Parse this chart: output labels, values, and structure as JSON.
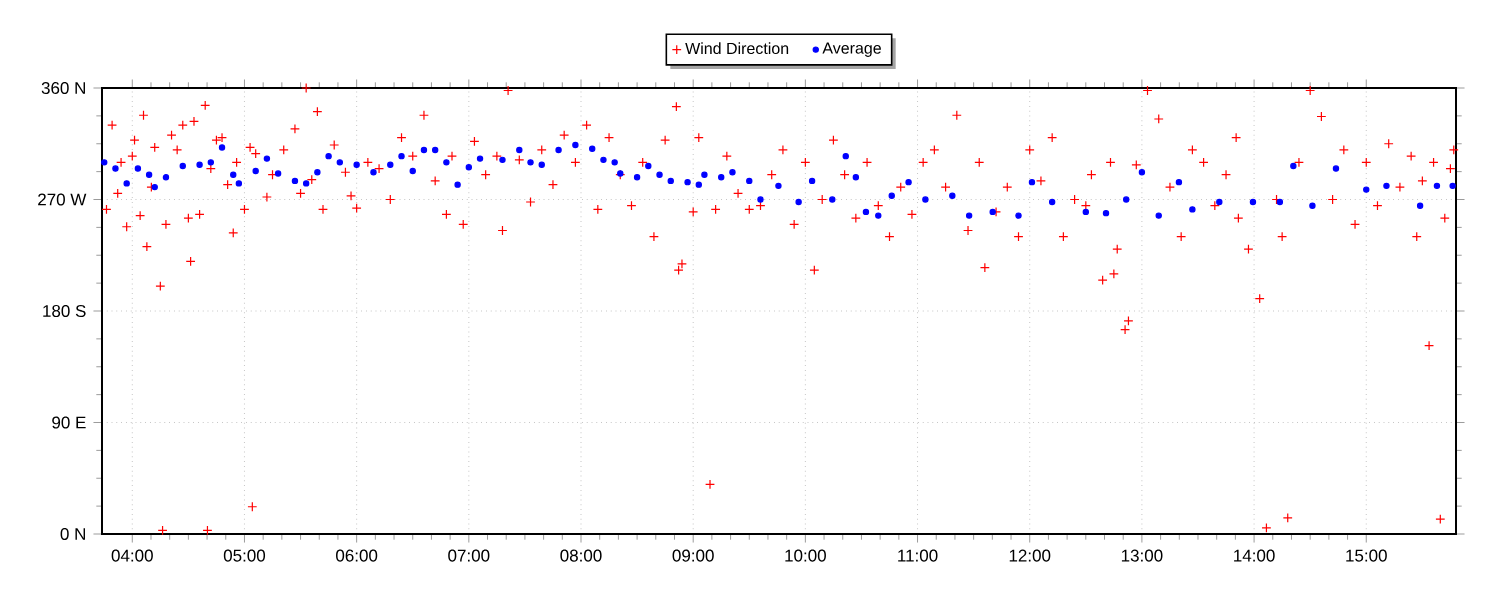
{
  "chart_data": {
    "type": "scatter",
    "xlim": [
      3.73,
      15.8
    ],
    "xticks": [
      {
        "value": 4,
        "label": "04:00"
      },
      {
        "value": 5,
        "label": "05:00"
      },
      {
        "value": 6,
        "label": "06:00"
      },
      {
        "value": 7,
        "label": "07:00"
      },
      {
        "value": 8,
        "label": "08:00"
      },
      {
        "value": 9,
        "label": "09:00"
      },
      {
        "value": 10,
        "label": "10:00"
      },
      {
        "value": 11,
        "label": "11:00"
      },
      {
        "value": 12,
        "label": "12:00"
      },
      {
        "value": 13,
        "label": "13:00"
      },
      {
        "value": 14,
        "label": "14:00"
      },
      {
        "value": 15,
        "label": "15:00"
      }
    ],
    "ylim": [
      0,
      360
    ],
    "yticks": [
      {
        "value": 0,
        "label": "0 N"
      },
      {
        "value": 90,
        "label": "90 E"
      },
      {
        "value": 180,
        "label": "180 S"
      },
      {
        "value": 270,
        "label": "270 W"
      },
      {
        "value": 360,
        "label": "360 N"
      }
    ],
    "grid": true,
    "legend": "top",
    "series": [
      {
        "name": "Wind Direction",
        "color": "#ff0000",
        "marker": "cross",
        "x": [
          3.77,
          3.82,
          3.87,
          3.9,
          3.95,
          4.0,
          4.02,
          4.07,
          4.1,
          4.13,
          4.17,
          4.2,
          4.25,
          4.27,
          4.3,
          4.35,
          4.4,
          4.45,
          4.5,
          4.52,
          4.55,
          4.6,
          4.65,
          4.67,
          4.7,
          4.75,
          4.8,
          4.85,
          4.9,
          4.93,
          5.0,
          5.05,
          5.07,
          5.1,
          5.2,
          5.25,
          5.35,
          5.45,
          5.5,
          5.55,
          5.6,
          5.65,
          5.7,
          5.8,
          5.9,
          5.95,
          6.0,
          6.1,
          6.2,
          6.3,
          6.4,
          6.5,
          6.6,
          6.7,
          6.8,
          6.85,
          6.95,
          7.05,
          7.15,
          7.25,
          7.3,
          7.35,
          7.45,
          7.55,
          7.65,
          7.75,
          7.85,
          7.95,
          8.05,
          8.15,
          8.25,
          8.35,
          8.45,
          8.55,
          8.65,
          8.75,
          8.85,
          8.87,
          8.9,
          9.0,
          9.05,
          9.15,
          9.2,
          9.3,
          9.4,
          9.5,
          9.6,
          9.7,
          9.8,
          9.9,
          10.0,
          10.08,
          10.15,
          10.25,
          10.35,
          10.45,
          10.55,
          10.65,
          10.75,
          10.85,
          10.95,
          11.05,
          11.15,
          11.25,
          11.35,
          11.45,
          11.55,
          11.6,
          11.7,
          11.8,
          11.9,
          12.0,
          12.1,
          12.2,
          12.3,
          12.4,
          12.5,
          12.55,
          12.65,
          12.72,
          12.75,
          12.78,
          12.85,
          12.88,
          12.95,
          13.05,
          13.15,
          13.25,
          13.35,
          13.45,
          13.55,
          13.65,
          13.75,
          13.84,
          13.86,
          13.95,
          14.05,
          14.11,
          14.2,
          14.25,
          14.3,
          14.4,
          14.5,
          14.6,
          14.7,
          14.8,
          14.9,
          15.0,
          15.1,
          15.2,
          15.3,
          15.4,
          15.45,
          15.5,
          15.56,
          15.6,
          15.66,
          15.7,
          15.75,
          15.78
        ],
        "values": [
          262,
          330,
          275,
          300,
          248,
          305,
          318,
          257,
          338,
          232,
          280,
          312,
          200,
          3,
          250,
          322,
          310,
          330,
          255,
          220,
          333,
          258,
          346,
          3,
          295,
          318,
          320,
          282,
          243,
          300,
          262,
          312,
          22,
          307,
          272,
          290,
          310,
          327,
          275,
          360,
          286,
          341,
          262,
          314,
          292,
          273,
          263,
          300,
          295,
          270,
          320,
          305,
          338,
          285,
          258,
          305,
          250,
          317,
          290,
          305,
          245,
          358,
          302,
          268,
          310,
          282,
          322,
          300,
          330,
          262,
          320,
          290,
          265,
          300,
          240,
          318,
          345,
          213,
          218,
          260,
          320,
          40,
          262,
          305,
          275,
          262,
          265,
          290,
          310,
          250,
          300,
          213,
          270,
          318,
          290,
          255,
          300,
          265,
          240,
          280,
          258,
          300,
          310,
          280,
          338,
          245,
          300,
          215,
          260,
          280,
          240,
          310,
          285,
          320,
          240,
          270,
          265,
          290,
          205,
          300,
          210,
          230,
          165,
          172,
          298,
          358,
          335,
          280,
          240,
          310,
          300,
          265,
          290,
          320,
          255,
          230,
          190,
          5,
          270,
          240,
          13,
          300,
          358,
          337,
          270,
          310,
          250,
          300,
          265,
          315,
          280,
          305,
          240,
          285,
          152,
          300,
          12,
          255,
          295,
          310
        ]
      },
      {
        "name": "Average",
        "color": "#0000ff",
        "marker": "circle",
        "x": [
          3.75,
          3.85,
          3.95,
          4.05,
          4.15,
          4.2,
          4.3,
          4.45,
          4.6,
          4.7,
          4.8,
          4.9,
          4.95,
          5.1,
          5.2,
          5.3,
          5.45,
          5.55,
          5.65,
          5.75,
          5.85,
          6.0,
          6.15,
          6.3,
          6.4,
          6.5,
          6.6,
          6.7,
          6.8,
          6.9,
          7.0,
          7.1,
          7.3,
          7.45,
          7.55,
          7.65,
          7.8,
          7.95,
          8.1,
          8.2,
          8.3,
          8.35,
          8.5,
          8.6,
          8.7,
          8.8,
          8.95,
          9.05,
          9.1,
          9.25,
          9.35,
          9.5,
          9.6,
          9.76,
          9.94,
          10.06,
          10.24,
          10.36,
          10.45,
          10.54,
          10.65,
          10.77,
          10.92,
          11.07,
          11.31,
          11.46,
          11.67,
          11.9,
          12.02,
          12.2,
          12.5,
          12.68,
          12.86,
          13.0,
          13.15,
          13.33,
          13.45,
          13.69,
          13.99,
          14.23,
          14.35,
          14.52,
          14.73,
          15.0,
          15.18,
          15.48,
          15.63,
          15.77
        ],
        "values": [
          300,
          295,
          283,
          295,
          290,
          280,
          288,
          297,
          298,
          300,
          312,
          290,
          283,
          293,
          303,
          291,
          285,
          283,
          292,
          305,
          300,
          298,
          292,
          298,
          305,
          293,
          310,
          310,
          300,
          282,
          296,
          303,
          302,
          310,
          300,
          298,
          310,
          314,
          311,
          302,
          300,
          291,
          288,
          297,
          290,
          285,
          284,
          282,
          290,
          288,
          292,
          285,
          270,
          281,
          268,
          285,
          270,
          305,
          288,
          260,
          257,
          273,
          284,
          270,
          273,
          257,
          260,
          257,
          284,
          268,
          260,
          259,
          270,
          292,
          257,
          284,
          262,
          268,
          268,
          268,
          297,
          265,
          295,
          278,
          281,
          265,
          281,
          281
        ]
      }
    ]
  }
}
